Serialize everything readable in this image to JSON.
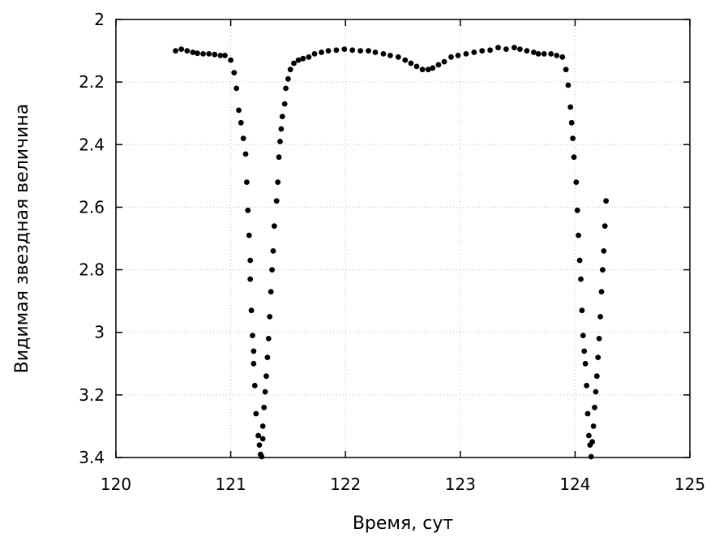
{
  "chart_data": {
    "type": "scatter",
    "title": "",
    "xlabel": "Время, сут",
    "ylabel": "Видимая звездная величина",
    "xlim": [
      120,
      125
    ],
    "ylim": [
      2,
      3.4
    ],
    "y_inverted": true,
    "grid": true,
    "x_ticks": [
      "120",
      "121",
      "122",
      "123",
      "124",
      "125"
    ],
    "y_ticks": [
      "2",
      "2.2",
      "2.4",
      "2.6",
      "2.8",
      "3",
      "3.2",
      "3.4"
    ],
    "marker_color": "#000000",
    "series": [
      {
        "points": [
          [
            120.52,
            2.1
          ],
          [
            120.57,
            2.095
          ],
          [
            120.62,
            2.1
          ],
          [
            120.67,
            2.105
          ],
          [
            120.71,
            2.108
          ],
          [
            120.76,
            2.11
          ],
          [
            120.81,
            2.11
          ],
          [
            120.86,
            2.112
          ],
          [
            120.91,
            2.115
          ],
          [
            120.95,
            2.115
          ],
          [
            121.0,
            2.13
          ],
          [
            121.03,
            2.17
          ],
          [
            121.05,
            2.22
          ],
          [
            121.07,
            2.29
          ],
          [
            121.09,
            2.33
          ],
          [
            121.11,
            2.38
          ],
          [
            121.13,
            2.43
          ],
          [
            121.14,
            2.52
          ],
          [
            121.15,
            2.61
          ],
          [
            121.16,
            2.69
          ],
          [
            121.17,
            2.77
          ],
          [
            121.17,
            2.83
          ],
          [
            121.18,
            2.93
          ],
          [
            121.19,
            3.01
          ],
          [
            121.2,
            3.06
          ],
          [
            121.2,
            3.1
          ],
          [
            121.21,
            3.17
          ],
          [
            121.22,
            3.26
          ],
          [
            121.24,
            3.33
          ],
          [
            121.25,
            3.36
          ],
          [
            121.26,
            3.39
          ],
          [
            121.27,
            3.4
          ],
          [
            121.28,
            3.34
          ],
          [
            121.28,
            3.3
          ],
          [
            121.29,
            3.24
          ],
          [
            121.3,
            3.19
          ],
          [
            121.31,
            3.14
          ],
          [
            121.32,
            3.08
          ],
          [
            121.33,
            3.02
          ],
          [
            121.34,
            2.95
          ],
          [
            121.35,
            2.87
          ],
          [
            121.36,
            2.8
          ],
          [
            121.37,
            2.74
          ],
          [
            121.38,
            2.66
          ],
          [
            121.4,
            2.58
          ],
          [
            121.41,
            2.52
          ],
          [
            121.42,
            2.44
          ],
          [
            121.43,
            2.39
          ],
          [
            121.44,
            2.35
          ],
          [
            121.45,
            2.31
          ],
          [
            121.47,
            2.27
          ],
          [
            121.48,
            2.22
          ],
          [
            121.5,
            2.19
          ],
          [
            121.52,
            2.16
          ],
          [
            121.55,
            2.14
          ],
          [
            121.59,
            2.13
          ],
          [
            121.63,
            2.125
          ],
          [
            121.68,
            2.12
          ],
          [
            121.73,
            2.11
          ],
          [
            121.79,
            2.105
          ],
          [
            121.85,
            2.1
          ],
          [
            121.92,
            2.098
          ],
          [
            121.99,
            2.095
          ],
          [
            122.06,
            2.098
          ],
          [
            122.13,
            2.1
          ],
          [
            122.2,
            2.1
          ],
          [
            122.26,
            2.105
          ],
          [
            122.33,
            2.11
          ],
          [
            122.39,
            2.115
          ],
          [
            122.46,
            2.12
          ],
          [
            122.52,
            2.13
          ],
          [
            122.57,
            2.14
          ],
          [
            122.62,
            2.15
          ],
          [
            122.67,
            2.16
          ],
          [
            122.72,
            2.16
          ],
          [
            122.76,
            2.155
          ],
          [
            122.81,
            2.145
          ],
          [
            122.86,
            2.135
          ],
          [
            122.92,
            2.12
          ],
          [
            122.98,
            2.115
          ],
          [
            123.05,
            2.11
          ],
          [
            123.12,
            2.105
          ],
          [
            123.19,
            2.1
          ],
          [
            123.26,
            2.098
          ],
          [
            123.33,
            2.09
          ],
          [
            123.4,
            2.095
          ],
          [
            123.47,
            2.09
          ],
          [
            123.52,
            2.095
          ],
          [
            123.58,
            2.1
          ],
          [
            123.64,
            2.105
          ],
          [
            123.68,
            2.11
          ],
          [
            123.73,
            2.11
          ],
          [
            123.79,
            2.11
          ],
          [
            123.84,
            2.115
          ],
          [
            123.89,
            2.12
          ],
          [
            123.92,
            2.16
          ],
          [
            123.94,
            2.21
          ],
          [
            123.96,
            2.28
          ],
          [
            123.97,
            2.33
          ],
          [
            123.98,
            2.38
          ],
          [
            123.99,
            2.44
          ],
          [
            124.01,
            2.52
          ],
          [
            124.02,
            2.61
          ],
          [
            124.03,
            2.69
          ],
          [
            124.04,
            2.77
          ],
          [
            124.05,
            2.83
          ],
          [
            124.06,
            2.93
          ],
          [
            124.07,
            3.01
          ],
          [
            124.08,
            3.06
          ],
          [
            124.09,
            3.1
          ],
          [
            124.1,
            3.17
          ],
          [
            124.11,
            3.26
          ],
          [
            124.12,
            3.33
          ],
          [
            124.13,
            3.36
          ],
          [
            124.14,
            3.4
          ],
          [
            124.15,
            3.35
          ],
          [
            124.16,
            3.3
          ],
          [
            124.17,
            3.24
          ],
          [
            124.18,
            3.19
          ],
          [
            124.19,
            3.14
          ],
          [
            124.2,
            3.08
          ],
          [
            124.21,
            3.02
          ],
          [
            124.22,
            2.95
          ],
          [
            124.23,
            2.87
          ],
          [
            124.24,
            2.8
          ],
          [
            124.25,
            2.74
          ],
          [
            124.26,
            2.66
          ],
          [
            124.27,
            2.58
          ]
        ]
      }
    ]
  }
}
